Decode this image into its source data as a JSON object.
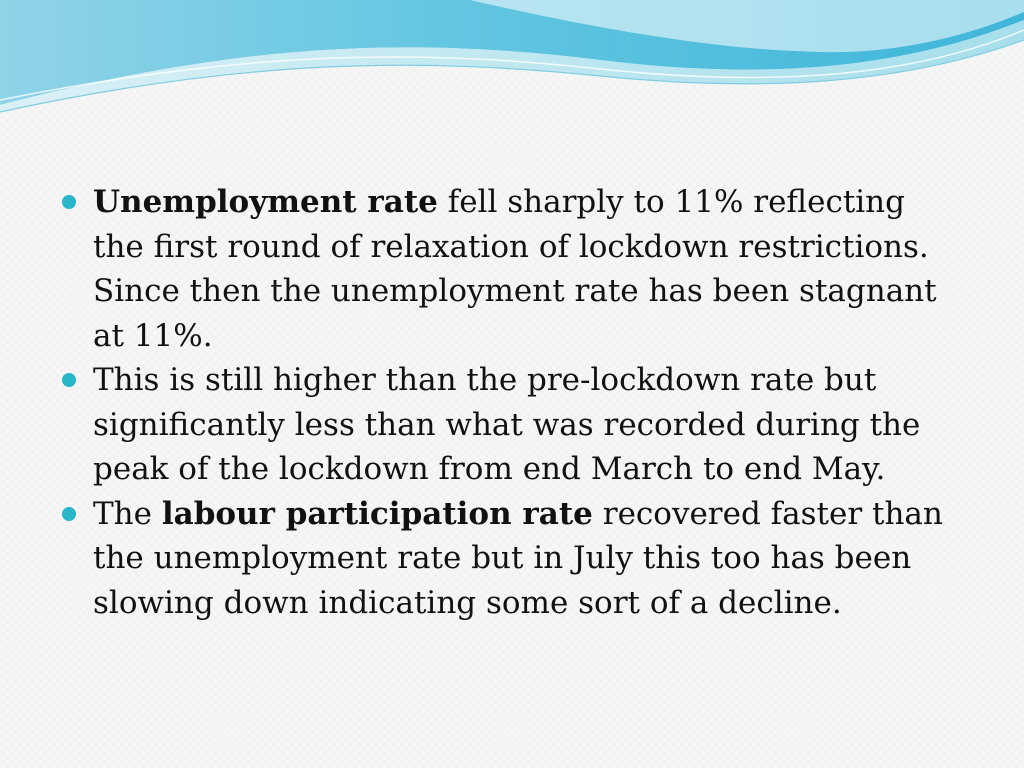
{
  "slide": {
    "accent_color": "#29b6c8",
    "bullets": [
      {
        "bold_lead": "Unemployment rate",
        "text": " fell sharply to 11% reflecting the first round of relaxation of lockdown restrictions. Since then the unemployment rate has been stagnant at 11%."
      },
      {
        "text": "This is still higher than the pre-lockdown rate but significantly less than what was recorded during the peak of the lockdown from end March to end May."
      },
      {
        "prefix": "The ",
        "bold_lead": "labour participation rate",
        "text": " recovered faster than the unemployment rate but in July this too has been slowing down indicating some sort of a decline."
      }
    ]
  }
}
